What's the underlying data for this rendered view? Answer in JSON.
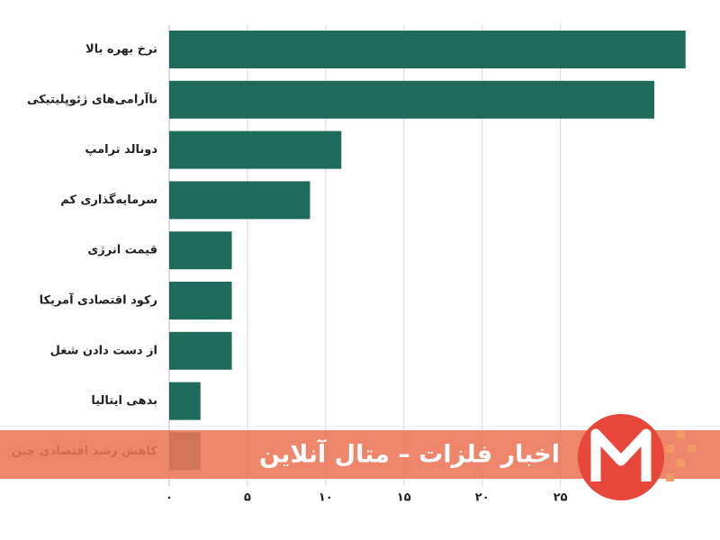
{
  "chart_data": {
    "type": "hbar",
    "categories": [
      "نرخ بهره بالا",
      "ناآرامی‌های ژئوپلیتیکی",
      "دونالد ترامپ",
      "سرمایه‌گذاری کم",
      "قیمت انرژی",
      "رکود اقتصادی آمریکا",
      "از دست دادن شغل",
      "بدهی ایتالیا",
      "کاهش رشد اقتصادی چین"
    ],
    "values": [
      33,
      31,
      11,
      9,
      4,
      4,
      4,
      2,
      2
    ],
    "color": "#1e6b5b",
    "xlim": [
      0,
      35.2
    ],
    "xticks": [
      {
        "value": 0,
        "label": "۰"
      },
      {
        "value": 5,
        "label": "۵"
      },
      {
        "value": 10,
        "label": "۱۰"
      },
      {
        "value": 15,
        "label": "۱۵"
      },
      {
        "value": 20,
        "label": "۲۰"
      },
      {
        "value": 25,
        "label": "۲۵"
      }
    ],
    "grid": true
  },
  "banner": {
    "text": "اخبار فلزات – متال آنلاین"
  }
}
